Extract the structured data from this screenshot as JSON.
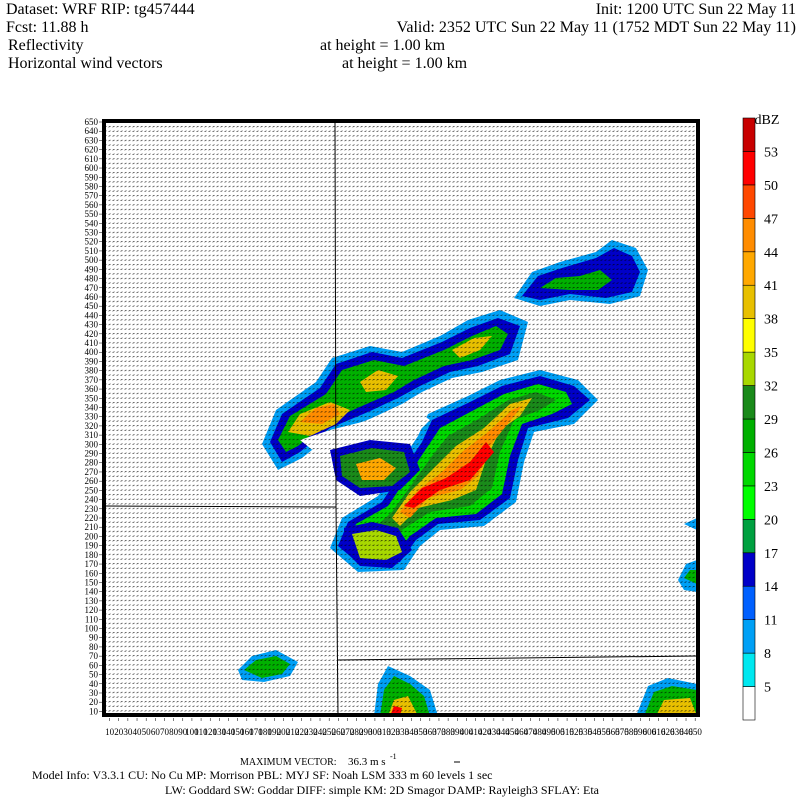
{
  "header": {
    "dataset": "Dataset: WRF   RIP: tg457444",
    "init": "Init: 1200 UTC Sun 22 May 11",
    "fcst": "Fcst:   11.88 h",
    "valid": "Valid: 2352 UTC Sun 22 May 11 (1752 MDT Sun 22 May 11)",
    "field1": "Reflectivity",
    "field1_height": "at height =  1.00 km",
    "field2": "Horizontal wind vectors",
    "field2_height": "at height =  1.00 km"
  },
  "plot": {
    "xlim": [
      5,
      652
    ],
    "ylim": [
      5,
      650
    ],
    "xticks": [
      10,
      20,
      30,
      40,
      50,
      60,
      70,
      80,
      90,
      100,
      110,
      120,
      130,
      140,
      150,
      160,
      170,
      180,
      190,
      200,
      210,
      220,
      230,
      240,
      250,
      260,
      270,
      280,
      290,
      300,
      310,
      320,
      330,
      340,
      350,
      360,
      370,
      380,
      390,
      400,
      410,
      420,
      430,
      440,
      450,
      460,
      470,
      480,
      490,
      500,
      510,
      520,
      530,
      540,
      550,
      560,
      570,
      580,
      590,
      600,
      610,
      620,
      630,
      640,
      650
    ],
    "yticks": [
      10,
      20,
      30,
      40,
      50,
      60,
      70,
      80,
      90,
      100,
      110,
      120,
      130,
      140,
      150,
      160,
      170,
      180,
      190,
      200,
      210,
      220,
      230,
      240,
      250,
      260,
      270,
      280,
      290,
      300,
      310,
      320,
      330,
      340,
      350,
      360,
      370,
      380,
      390,
      400,
      410,
      420,
      430,
      440,
      450,
      460,
      470,
      480,
      490,
      500,
      510,
      520,
      530,
      540,
      550,
      560,
      570,
      580,
      590,
      600,
      610,
      620,
      630,
      640,
      650
    ]
  },
  "colorbar": {
    "unit": "dBZ",
    "levels": [
      5,
      8,
      11,
      14,
      17,
      20,
      23,
      26,
      29,
      32,
      35,
      38,
      41,
      44,
      47,
      50,
      53
    ],
    "colors": [
      "#ffffff",
      "#00e8f0",
      "#00a0f6",
      "#0060ff",
      "#0000c8",
      "#00a040",
      "#00ff00",
      "#00d800",
      "#00b000",
      "#1a8a1a",
      "#a8d800",
      "#ffff00",
      "#e8c000",
      "#ffa800",
      "#ff8c00",
      "#ff4800",
      "#ff0000",
      "#c80000"
    ]
  },
  "footer": {
    "max_vector_label": "MAXIMUM VECTOR:",
    "max_vector_value": "36.3 m s",
    "max_vector_exp": "-1",
    "model_info": "Model Info: V3.3.1    CU: No Cu    MP: Morrison    PBL: MYJ    SF: Noah LSM    333 m    60 levels    1 sec",
    "physics": "LW: Goddard  SW: Goddar  DIFF: simple  KM: 2D Smagor  DAMP: Rayleigh3  SFLAY: Eta"
  }
}
